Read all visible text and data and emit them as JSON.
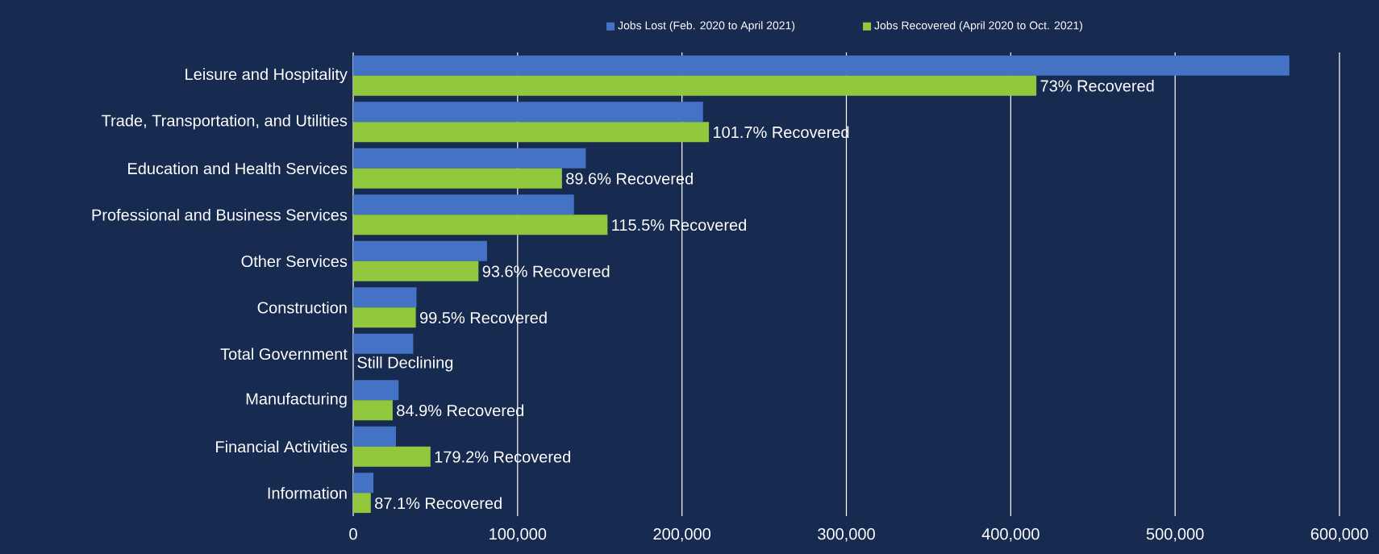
{
  "chart_data": {
    "type": "bar",
    "orientation": "horizontal",
    "categories": [
      "Leisure and Hospitality",
      "Trade, Transportation, and Utilities",
      "Education and Health Services",
      "Professional and Business Services",
      "Other Services",
      "Construction",
      "Total Government",
      "Manufacturing",
      "Financial Activities",
      "Information"
    ],
    "series": [
      {
        "name": "Jobs Lost (Feb. 2020 to April 2021)",
        "color": "#4472c4",
        "values": [
          569500,
          212800,
          141500,
          134300,
          81400,
          38500,
          36500,
          27600,
          26000,
          12300
        ]
      },
      {
        "name": "Jobs Recovered (April 2020 to Oct. 2021)",
        "color": "#92c83e",
        "values": [
          415600,
          216400,
          127000,
          154700,
          76200,
          38100,
          null,
          24000,
          47000,
          10700
        ]
      }
    ],
    "annotations": [
      {
        "text": "73% Recovered",
        "x": 415600,
        "y": "Leisure and Hospitality"
      },
      {
        "text": "101.7% Recovered",
        "x": 216400,
        "y": "Trade, Transportation, and Utilities"
      },
      {
        "text": "89.6% Recovered",
        "x": 127000,
        "y": "Education and Health Services"
      },
      {
        "text": "115.5% Recovered",
        "x": 154700,
        "y": "Professional and Business Services"
      },
      {
        "text": "93.6% Recovered",
        "x": 76200,
        "y": "Other Services"
      },
      {
        "text": "99.5% Recovered",
        "x": 38100,
        "y": "Construction"
      },
      {
        "text": "Still Declining",
        "x": 0,
        "y": "Total Government"
      },
      {
        "text": "84.9% Recovered",
        "x": 24000,
        "y": "Manufacturing"
      },
      {
        "text": "179.2% Recovered",
        "x": 47000,
        "y": "Financial Activities"
      },
      {
        "text": "87.1% Recovered",
        "x": 10700,
        "y": "Information"
      }
    ],
    "xlim": [
      0,
      600000
    ],
    "xticks": [
      0,
      {
        "value": 100000,
        "label": "100,000"
      },
      {
        "value": 200000,
        "label": "200,000"
      },
      {
        "value": 300000,
        "label": "300,000"
      },
      {
        "value": 400000,
        "label": "400,000"
      },
      {
        "value": 500000,
        "label": "500,000"
      },
      {
        "value": 600000,
        "label": "600,000"
      }
    ],
    "grid": "x",
    "legend": "top"
  }
}
